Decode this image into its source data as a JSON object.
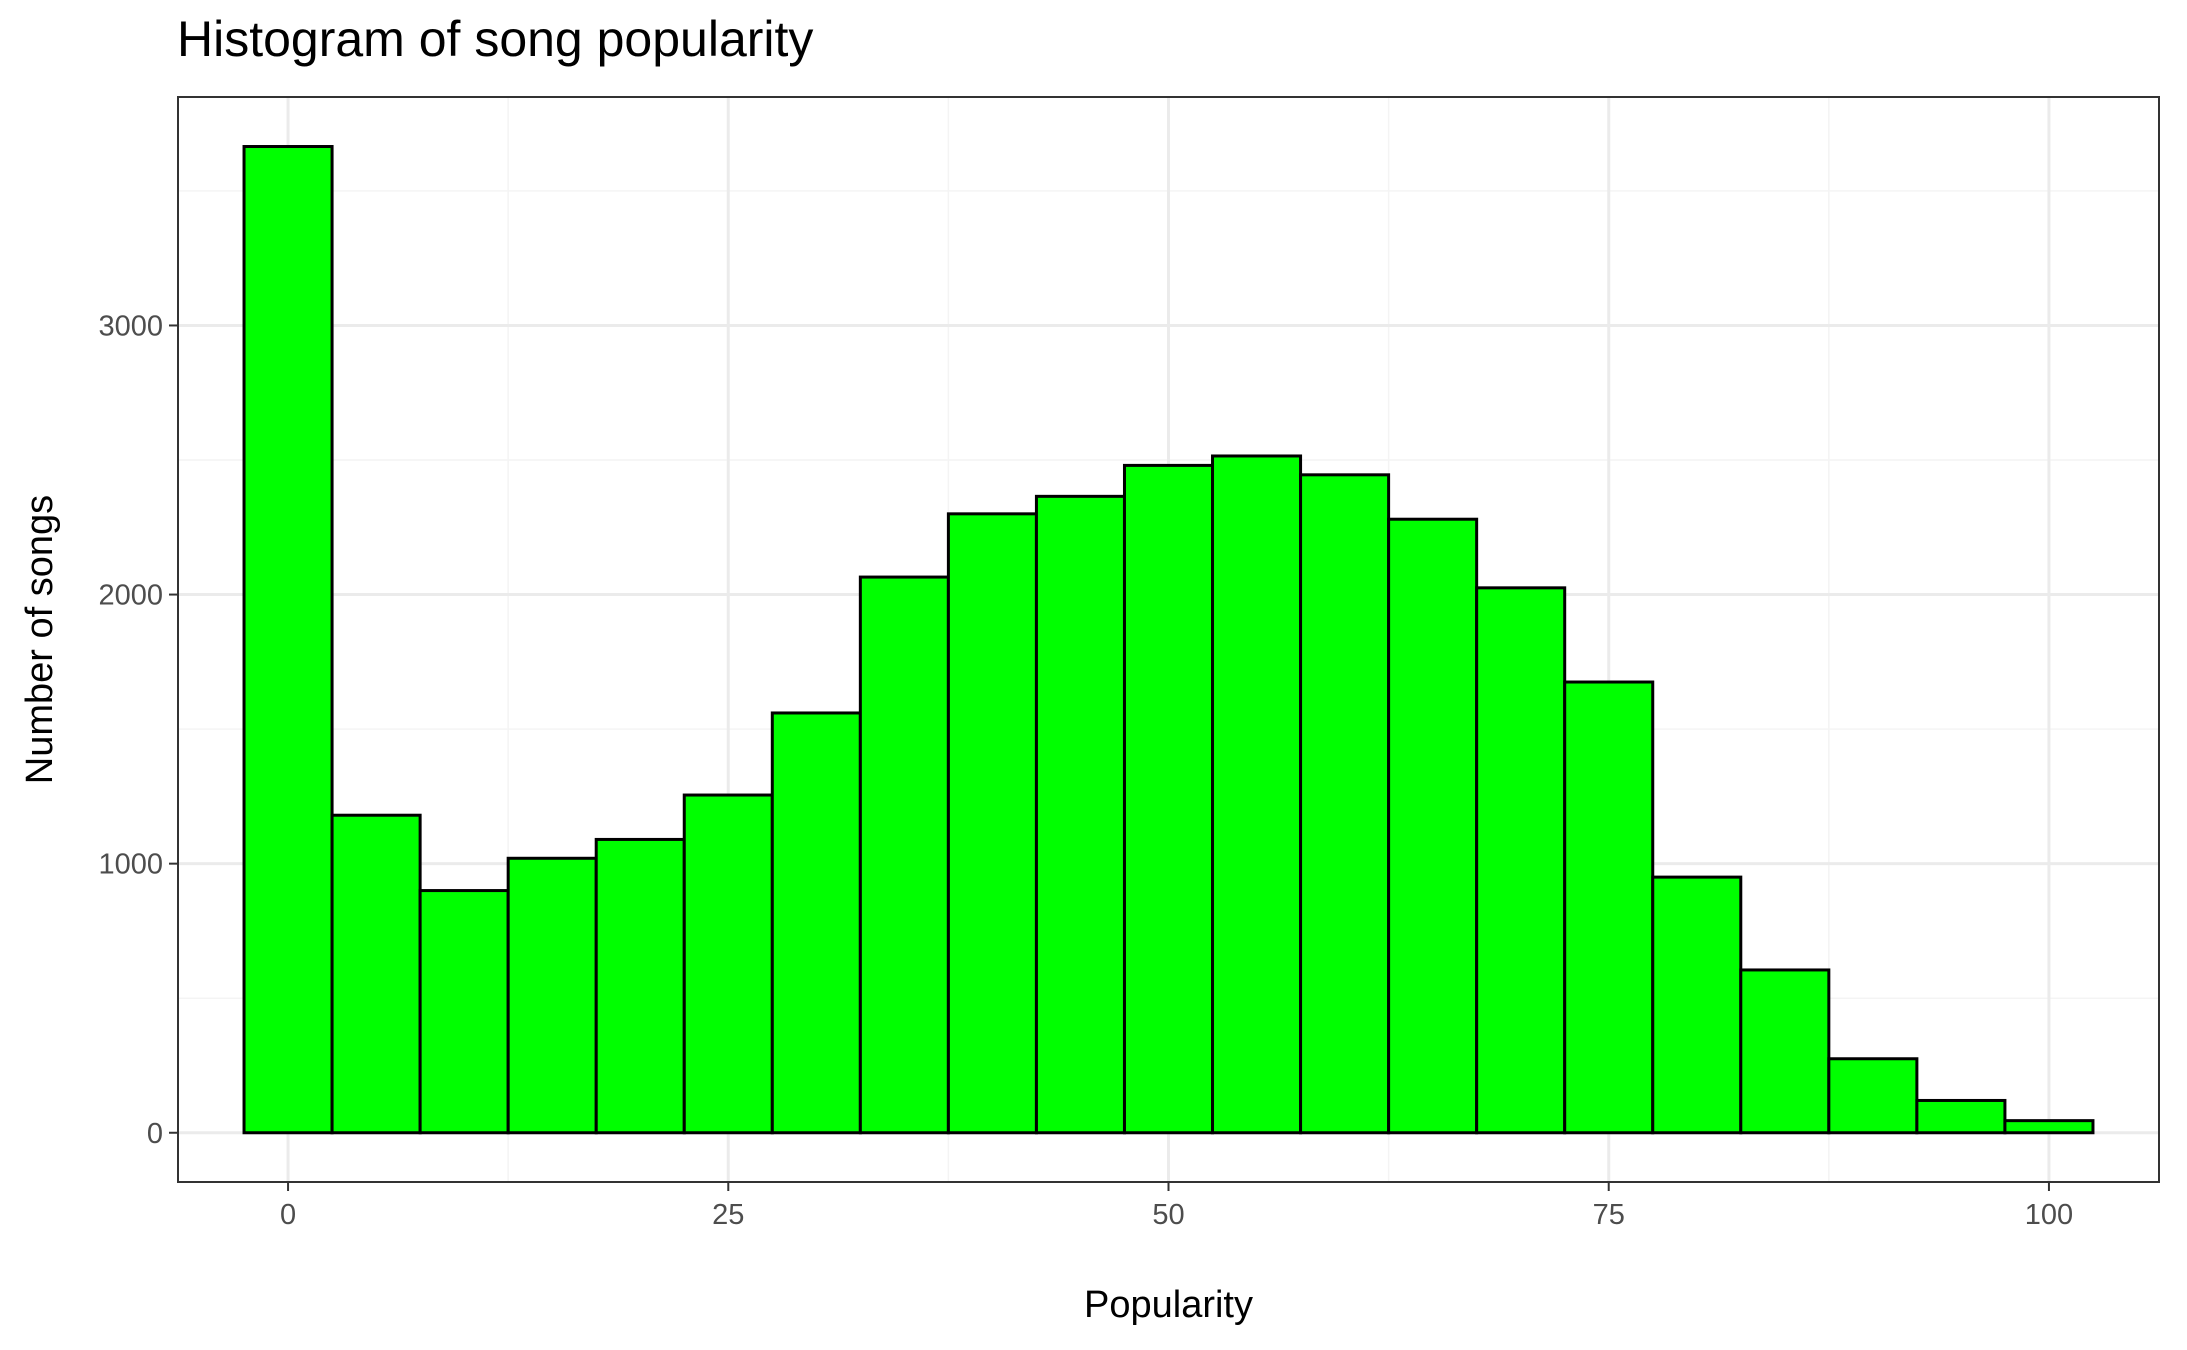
{
  "chart_data": {
    "type": "bar",
    "title": "Histogram of song popularity",
    "xlabel": "Popularity",
    "ylabel": "Number of songs",
    "bin_width": 5,
    "x": [
      0,
      5,
      10,
      15,
      20,
      25,
      30,
      35,
      40,
      45,
      50,
      55,
      60,
      65,
      70,
      75,
      80,
      85,
      90,
      95,
      100
    ],
    "values": [
      3665,
      1180,
      900,
      1020,
      1090,
      1255,
      1560,
      2065,
      2300,
      2365,
      2480,
      2515,
      2445,
      2280,
      2025,
      1675,
      950,
      605,
      275,
      120,
      45
    ],
    "xlim": [
      -6.25,
      106.25
    ],
    "ylim": [
      -183,
      3849
    ],
    "x_ticks": [
      0,
      25,
      50,
      75,
      100
    ],
    "x_tick_labels": [
      "0",
      "25",
      "50",
      "75",
      "100"
    ],
    "y_ticks": [
      0,
      1000,
      2000,
      3000
    ],
    "y_tick_labels": [
      "0",
      "1000",
      "2000",
      "3000"
    ],
    "grid": true,
    "colors": {
      "bar_fill": "#00ff00",
      "bar_outline": "#000000",
      "grid_major": "#ebebeb",
      "grid_minor": "#f4f4f4",
      "panel_border": "#333333",
      "tick_text": "#4d4d4d"
    }
  }
}
